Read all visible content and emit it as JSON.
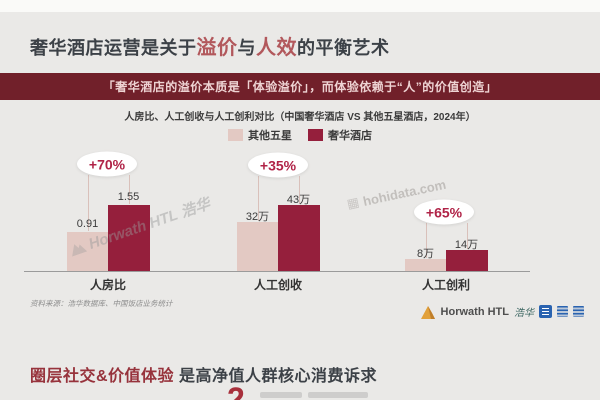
{
  "slide": {
    "title": {
      "prefix": "奢华酒店运营是关于",
      "accent1": "溢价",
      "conj": "与",
      "accent2": "人效",
      "suffix": "的平衡艺术"
    },
    "quote": "「奢华酒店的溢价本质是「体验溢价」，而体验依赖于“人”的价值创造」",
    "source_note": "资料来源：浩华数据库、中国饭店业务统计",
    "watermarks": {
      "horwath": "Horwath HTL 浩华",
      "hohidata": "hohidata.com"
    },
    "footer": {
      "horwath_name": "Horwath HTL",
      "horwath_script": "浩华"
    },
    "bottom": {
      "accent": "圈层社交&价值体验",
      "rest": "是高净值人群核心消费诉求",
      "partial_digit": "2"
    }
  },
  "colors": {
    "title_accent": "#b2585c",
    "quote_bar_bg": "#71202a",
    "bubble_text": "#b02347",
    "heading_red": "#97333c",
    "background": "#eae9e7"
  },
  "chart_data": {
    "type": "bar",
    "title": "人房比、人工创收与人工创利对比（中国奢华酒店 VS 其他五星酒店，2024年）",
    "categories": [
      "人房比",
      "人工创收",
      "人工创利"
    ],
    "series": [
      {
        "name": "其他五星",
        "color": "#e3c9c3",
        "values": [
          0.91,
          32,
          8
        ],
        "value_labels": [
          "0.91",
          "32万",
          "8万"
        ]
      },
      {
        "name": "奢华酒店",
        "color": "#951f3c",
        "values": [
          1.55,
          43,
          14
        ],
        "value_labels": [
          "1.55",
          "43万",
          "14万"
        ]
      }
    ],
    "delta_labels": [
      "+70%",
      "+35%",
      "+65%"
    ],
    "legend_position": "top",
    "grid": false,
    "baseline": 0
  }
}
